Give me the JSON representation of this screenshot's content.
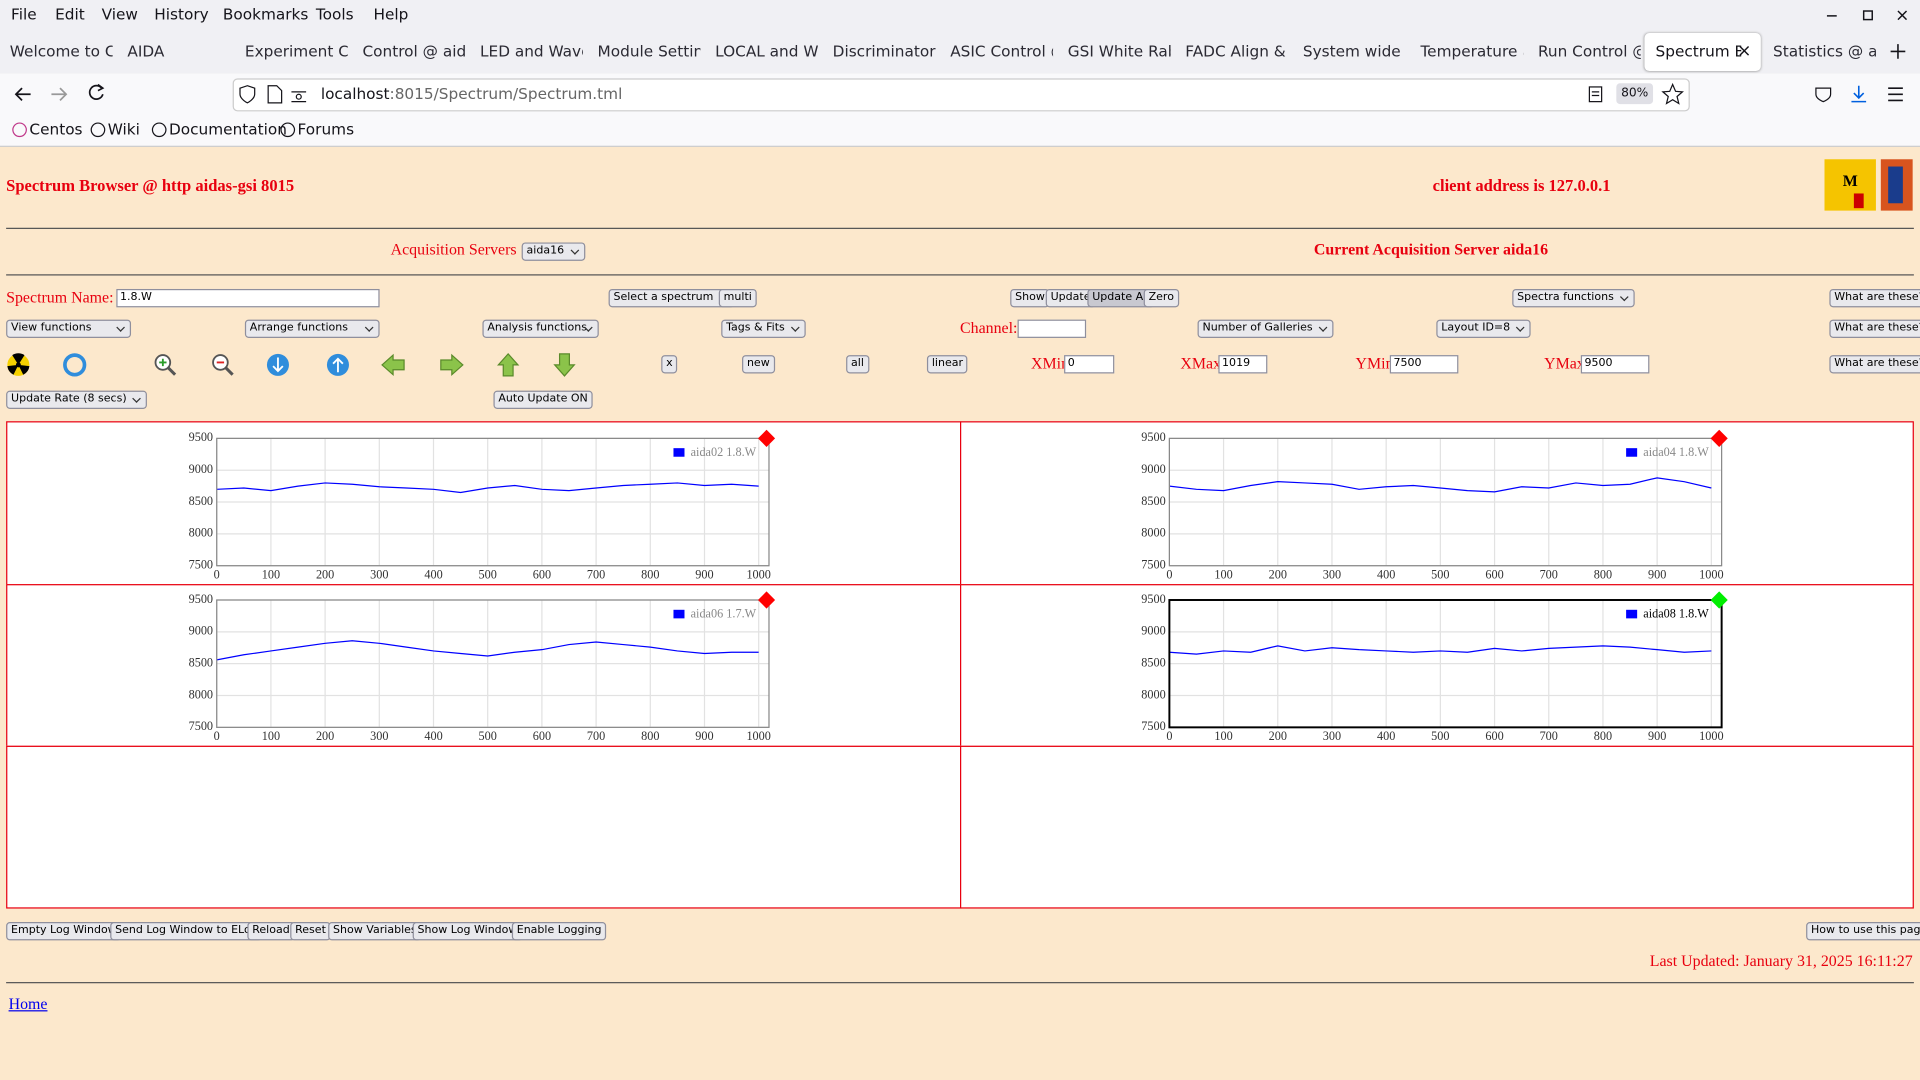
{
  "menu": [
    "File",
    "Edit",
    "View",
    "History",
    "Bookmarks",
    "Tools",
    "Help"
  ],
  "tabs": [
    "Welcome to C",
    "AIDA",
    "Experiment Co",
    "Control @ aida",
    "LED and Wave",
    "Module Setting",
    "LOCAL and Wa",
    "Discriminator",
    "ASIC Control @",
    "GSI White Rab",
    "FADC Align & C",
    "System wide C",
    "Temperature a",
    "Run Control @",
    "Spectrum Br",
    "Statistics @ ai"
  ],
  "url": {
    "host": "localhost",
    "path": ":8015/Spectrum/Spectrum.tml"
  },
  "zoom": "80%",
  "bookmarks": [
    "Centos",
    "Wiki",
    "Documentation",
    "Forums"
  ],
  "page": {
    "title": "Spectrum Browser @ http aidas-gsi 8015",
    "client": "client address is 127.0.0.1",
    "acq_label": "Acquisition Servers",
    "acq_select": "aida16",
    "current_server": "Current Acquisition Server aida16",
    "spectrum_label": "Spectrum Name:",
    "spectrum_name": "1.8.W",
    "select_spectrum": "Select a spectrum",
    "multi": "multi",
    "show": "Show",
    "update": "Update",
    "update_all": "Update All",
    "zero": "Zero",
    "spectra_functions": "Spectra functions",
    "what": "What are these?",
    "view_functions": "View functions",
    "arrange_functions": "Arrange functions",
    "analysis_functions": "Analysis functions",
    "tags_fits": "Tags & Fits",
    "channel_label": "Channel:",
    "galleries": "Number of Galleries",
    "layout": "Layout ID=8",
    "btn_x": "x",
    "btn_new": "new",
    "btn_all": "all",
    "btn_linear": "linear",
    "xmin_label": "XMin",
    "xmin": "0",
    "xmax_label": "XMax",
    "xmax": "1019",
    "ymin_label": "YMin",
    "ymin": "7500",
    "ymax_label": "YMax",
    "ymax": "9500",
    "update_rate": "Update Rate (8 secs)",
    "auto_update": "Auto Update ON",
    "log_buttons": [
      "Empty Log Window",
      "Send Log Window to ELog",
      "Reload",
      "Reset",
      "Show Variables",
      "Show Log Window",
      "Enable Logging"
    ],
    "how_to": "How to use this page",
    "last_updated": "Last Updated: January 31, 2025 16:11:27",
    "home": "Home"
  },
  "chart_data": [
    {
      "type": "line",
      "x": [
        0,
        50,
        100,
        150,
        200,
        250,
        300,
        350,
        400,
        450,
        500,
        550,
        600,
        650,
        700,
        750,
        800,
        850,
        900,
        950,
        1000
      ],
      "series": [
        {
          "name": "aida02 1.8.W",
          "color": "#0000ff",
          "values": [
            8700,
            8720,
            8680,
            8750,
            8800,
            8780,
            8740,
            8720,
            8700,
            8650,
            8720,
            8760,
            8700,
            8680,
            8720,
            8760,
            8780,
            8800,
            8760,
            8780,
            8750
          ]
        }
      ],
      "xlim": [
        0,
        1019
      ],
      "ylim": [
        7500,
        9500
      ],
      "xticks": [
        0,
        100,
        200,
        300,
        400,
        500,
        600,
        700,
        800,
        900,
        1000
      ],
      "yticks": [
        7500,
        8000,
        8500,
        9000,
        9500
      ],
      "grid": true,
      "marker_color": "#ff0000",
      "selected": false
    },
    {
      "type": "line",
      "x": [
        0,
        50,
        100,
        150,
        200,
        250,
        300,
        350,
        400,
        450,
        500,
        550,
        600,
        650,
        700,
        750,
        800,
        850,
        900,
        950,
        1000
      ],
      "series": [
        {
          "name": "aida04 1.8.W",
          "color": "#0000ff",
          "values": [
            8750,
            8700,
            8680,
            8760,
            8820,
            8800,
            8780,
            8700,
            8740,
            8760,
            8720,
            8680,
            8660,
            8740,
            8720,
            8800,
            8760,
            8780,
            8880,
            8820,
            8720
          ]
        }
      ],
      "xlim": [
        0,
        1019
      ],
      "ylim": [
        7500,
        9500
      ],
      "xticks": [
        0,
        100,
        200,
        300,
        400,
        500,
        600,
        700,
        800,
        900,
        1000
      ],
      "yticks": [
        7500,
        8000,
        8500,
        9000,
        9500
      ],
      "grid": true,
      "marker_color": "#ff0000",
      "selected": false
    },
    {
      "type": "line",
      "x": [
        0,
        50,
        100,
        150,
        200,
        250,
        300,
        350,
        400,
        450,
        500,
        550,
        600,
        650,
        700,
        750,
        800,
        850,
        900,
        950,
        1000
      ],
      "series": [
        {
          "name": "aida06 1.7.W",
          "color": "#0000ff",
          "values": [
            8560,
            8640,
            8700,
            8760,
            8820,
            8860,
            8820,
            8760,
            8700,
            8660,
            8620,
            8680,
            8720,
            8800,
            8840,
            8800,
            8760,
            8700,
            8660,
            8680,
            8680
          ]
        }
      ],
      "xlim": [
        0,
        1019
      ],
      "ylim": [
        7500,
        9500
      ],
      "xticks": [
        0,
        100,
        200,
        300,
        400,
        500,
        600,
        700,
        800,
        900,
        1000
      ],
      "yticks": [
        7500,
        8000,
        8500,
        9000,
        9500
      ],
      "grid": true,
      "marker_color": "#ff0000",
      "selected": false
    },
    {
      "type": "line",
      "x": [
        0,
        50,
        100,
        150,
        200,
        250,
        300,
        350,
        400,
        450,
        500,
        550,
        600,
        650,
        700,
        750,
        800,
        850,
        900,
        950,
        1000
      ],
      "series": [
        {
          "name": "aida08 1.8.W",
          "color": "#0000ff",
          "values": [
            8680,
            8650,
            8700,
            8680,
            8780,
            8700,
            8750,
            8720,
            8700,
            8680,
            8700,
            8680,
            8740,
            8700,
            8740,
            8760,
            8780,
            8760,
            8720,
            8680,
            8700
          ]
        }
      ],
      "xlim": [
        0,
        1019
      ],
      "ylim": [
        7500,
        9500
      ],
      "xticks": [
        0,
        100,
        200,
        300,
        400,
        500,
        600,
        700,
        800,
        900,
        1000
      ],
      "yticks": [
        7500,
        8000,
        8500,
        9000,
        9500
      ],
      "grid": true,
      "marker_color": "#00ee00",
      "selected": true
    }
  ]
}
